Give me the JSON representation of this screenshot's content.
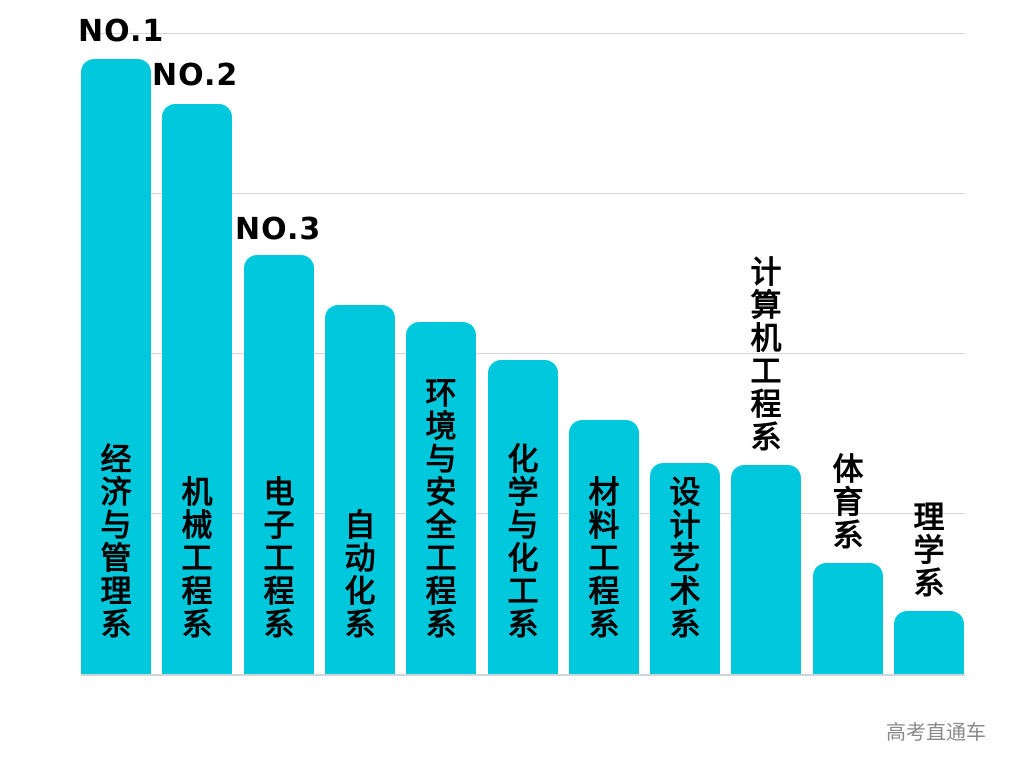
{
  "chart_data": {
    "type": "bar",
    "title": "",
    "xlabel": "",
    "ylabel": "",
    "grid": true,
    "legend": "none",
    "categories": [
      "经济与管理系",
      "机械工程系",
      "电子工程系",
      "自动化系",
      "环境与安全工程系",
      "化学与化工系",
      "材料工程系",
      "设计艺术系",
      "计算机工程系",
      "体育系",
      "理学系"
    ],
    "values": [
      615,
      570,
      419,
      369,
      352,
      314,
      254,
      211,
      209,
      111,
      63
    ],
    "value_note": "relative bar heights (no axis values shown)",
    "ylim": [
      0,
      641
    ],
    "gridlines": [
      0,
      160,
      320,
      480,
      641
    ],
    "bar_color": "#00C8DC",
    "annotations": [
      {
        "category": "经济与管理系",
        "text": "NO.1"
      },
      {
        "category": "机械工程系",
        "text": "NO.2"
      },
      {
        "category": "电子工程系",
        "text": "NO.3"
      }
    ]
  },
  "labels": {
    "rank1": "NO.1",
    "rank2": "NO.2",
    "rank3": "NO.3",
    "watermark": "高考直通车"
  }
}
